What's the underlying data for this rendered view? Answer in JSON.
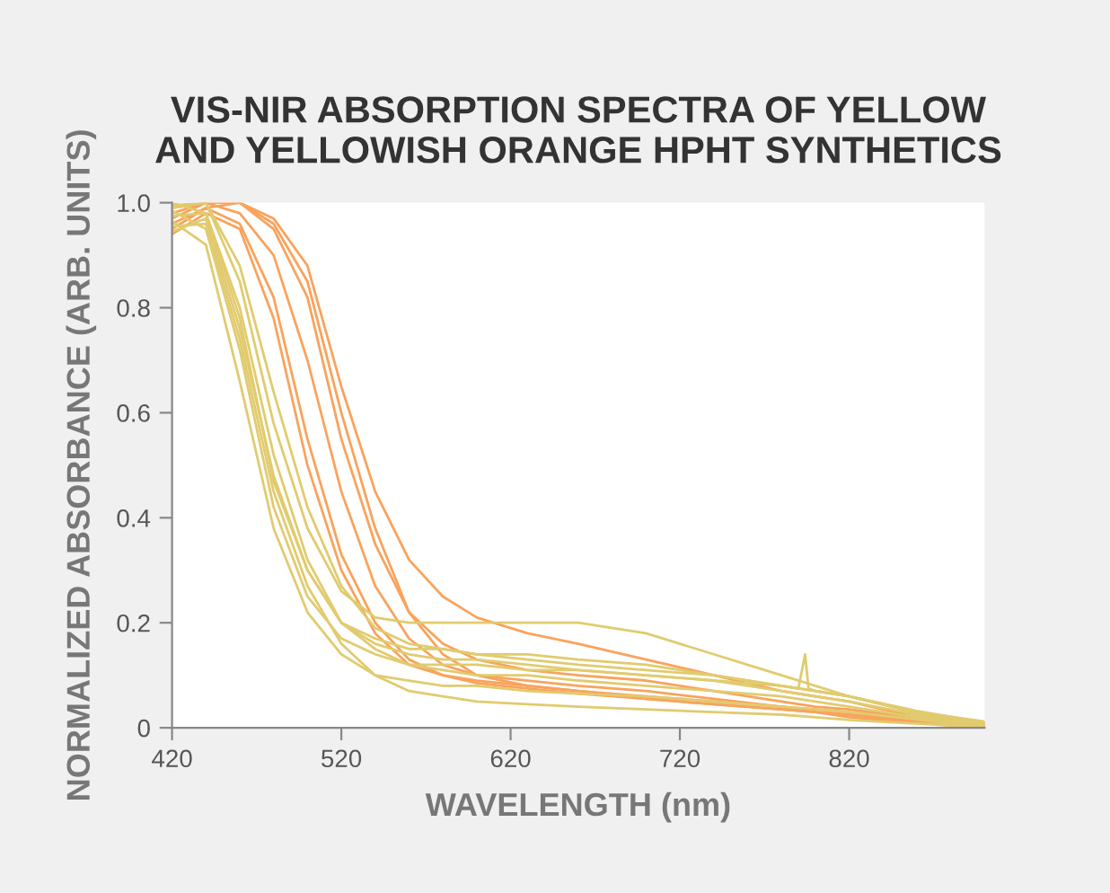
{
  "chart_data": {
    "type": "line",
    "title": "VIS-NIR ABSORPTION SPECTRA OF YELLOW\nAND YELLOWISH ORANGE HPHT SYNTHETICS",
    "xlabel": "WAVELENGTH (nm)",
    "ylabel": "NORMALIZED ABSORBANCE (ARB. UNITS)",
    "x": [
      420,
      440,
      460,
      480,
      500,
      520,
      540,
      560,
      580,
      600,
      630,
      660,
      700,
      740,
      780,
      800,
      820,
      860,
      900
    ],
    "xlim": [
      420,
      900
    ],
    "ylim": [
      0,
      1
    ],
    "xticks": [
      420,
      520,
      620,
      720,
      820
    ],
    "yticks": [
      {
        "value": 0,
        "label": "0"
      },
      0.2,
      0.4,
      0.6,
      0.8,
      {
        "value": 1.0,
        "label": "1.0"
      }
    ],
    "grid": false,
    "marker": "none",
    "line_style": "solid",
    "series": [
      {
        "color": "#f9a35c",
        "values": [
          0.97,
          1.0,
          1.0,
          0.97,
          0.88,
          0.65,
          0.45,
          0.32,
          0.25,
          0.21,
          0.18,
          0.16,
          0.13,
          0.1,
          0.07,
          0.06,
          0.05,
          0.02,
          0.01
        ]
      },
      {
        "color": "#f9a35c",
        "values": [
          0.96,
          0.99,
          1.0,
          0.95,
          0.82,
          0.55,
          0.35,
          0.22,
          0.16,
          0.13,
          0.11,
          0.1,
          0.09,
          0.07,
          0.05,
          0.04,
          0.035,
          0.018,
          0.006
        ]
      },
      {
        "color": "#f9a35c",
        "values": [
          0.98,
          1.0,
          0.98,
          0.9,
          0.7,
          0.45,
          0.27,
          0.17,
          0.12,
          0.1,
          0.09,
          0.08,
          0.07,
          0.055,
          0.04,
          0.035,
          0.03,
          0.015,
          0.004
        ]
      },
      {
        "color": "#f9a35c",
        "values": [
          0.95,
          0.99,
          0.96,
          0.82,
          0.55,
          0.33,
          0.2,
          0.13,
          0.1,
          0.09,
          0.08,
          0.07,
          0.06,
          0.05,
          0.04,
          0.03,
          0.025,
          0.012,
          0.002
        ]
      },
      {
        "color": "#f9a35c",
        "values": [
          0.99,
          1.0,
          1.0,
          0.96,
          0.85,
          0.6,
          0.38,
          0.22,
          0.14,
          0.1,
          0.08,
          0.07,
          0.055,
          0.045,
          0.035,
          0.03,
          0.025,
          0.011,
          0.003
        ]
      },
      {
        "color": "#f9a35c",
        "values": [
          0.94,
          0.98,
          0.95,
          0.78,
          0.5,
          0.3,
          0.18,
          0.12,
          0.1,
          0.085,
          0.075,
          0.065,
          0.055,
          0.045,
          0.035,
          0.03,
          0.02,
          0.009,
          0.001
        ]
      },
      {
        "color": "#e1cb6e",
        "values": [
          1.0,
          0.98,
          0.78,
          0.47,
          0.3,
          0.2,
          0.16,
          0.14,
          0.13,
          0.13,
          0.12,
          0.11,
          0.1,
          0.09,
          0.07,
          0.06,
          0.05,
          0.025,
          0.008
        ]
      },
      {
        "color": "#e1cb6e",
        "values": [
          0.99,
          1.0,
          0.85,
          0.58,
          0.38,
          0.26,
          0.21,
          0.2,
          0.2,
          0.2,
          0.2,
          0.2,
          0.18,
          0.14,
          0.1,
          0.08,
          0.06,
          0.03,
          0.012
        ]
      },
      {
        "color": "#e1cb6e",
        "x": [
          420,
          440,
          460,
          480,
          500,
          520,
          540,
          560,
          580,
          600,
          630,
          660,
          700,
          740,
          780,
          790,
          794,
          796,
          800,
          820,
          860,
          900
        ],
        "values": [
          0.985,
          0.95,
          0.72,
          0.42,
          0.25,
          0.17,
          0.14,
          0.12,
          0.12,
          0.12,
          0.11,
          0.11,
          0.1,
          0.09,
          0.08,
          0.075,
          0.14,
          0.075,
          0.07,
          0.06,
          0.03,
          0.007
        ]
      },
      {
        "color": "#e1cb6e",
        "values": [
          0.975,
          0.98,
          0.8,
          0.52,
          0.32,
          0.2,
          0.15,
          0.12,
          0.11,
          0.1,
          0.1,
          0.09,
          0.08,
          0.07,
          0.06,
          0.05,
          0.04,
          0.02,
          0.005
        ]
      },
      {
        "color": "#e1cb6e",
        "values": [
          0.965,
          0.92,
          0.66,
          0.38,
          0.22,
          0.14,
          0.1,
          0.09,
          0.08,
          0.08,
          0.07,
          0.065,
          0.06,
          0.05,
          0.04,
          0.035,
          0.03,
          0.016,
          0.0
        ]
      },
      {
        "color": "#e1cb6e",
        "values": [
          0.995,
          1.0,
          0.88,
          0.64,
          0.42,
          0.27,
          0.19,
          0.16,
          0.15,
          0.14,
          0.13,
          0.12,
          0.11,
          0.1,
          0.08,
          0.07,
          0.06,
          0.028,
          0.009
        ]
      },
      {
        "color": "#e1cb6e",
        "values": [
          0.955,
          0.96,
          0.74,
          0.45,
          0.27,
          0.16,
          0.1,
          0.07,
          0.06,
          0.05,
          0.045,
          0.04,
          0.035,
          0.03,
          0.025,
          0.02,
          0.015,
          0.008,
          0.0
        ]
      },
      {
        "color": "#e1cb6e",
        "values": [
          0.945,
          0.97,
          0.76,
          0.48,
          0.3,
          0.2,
          0.17,
          0.15,
          0.15,
          0.14,
          0.14,
          0.13,
          0.12,
          0.1,
          0.08,
          0.07,
          0.06,
          0.032,
          0.01
        ]
      }
    ]
  }
}
